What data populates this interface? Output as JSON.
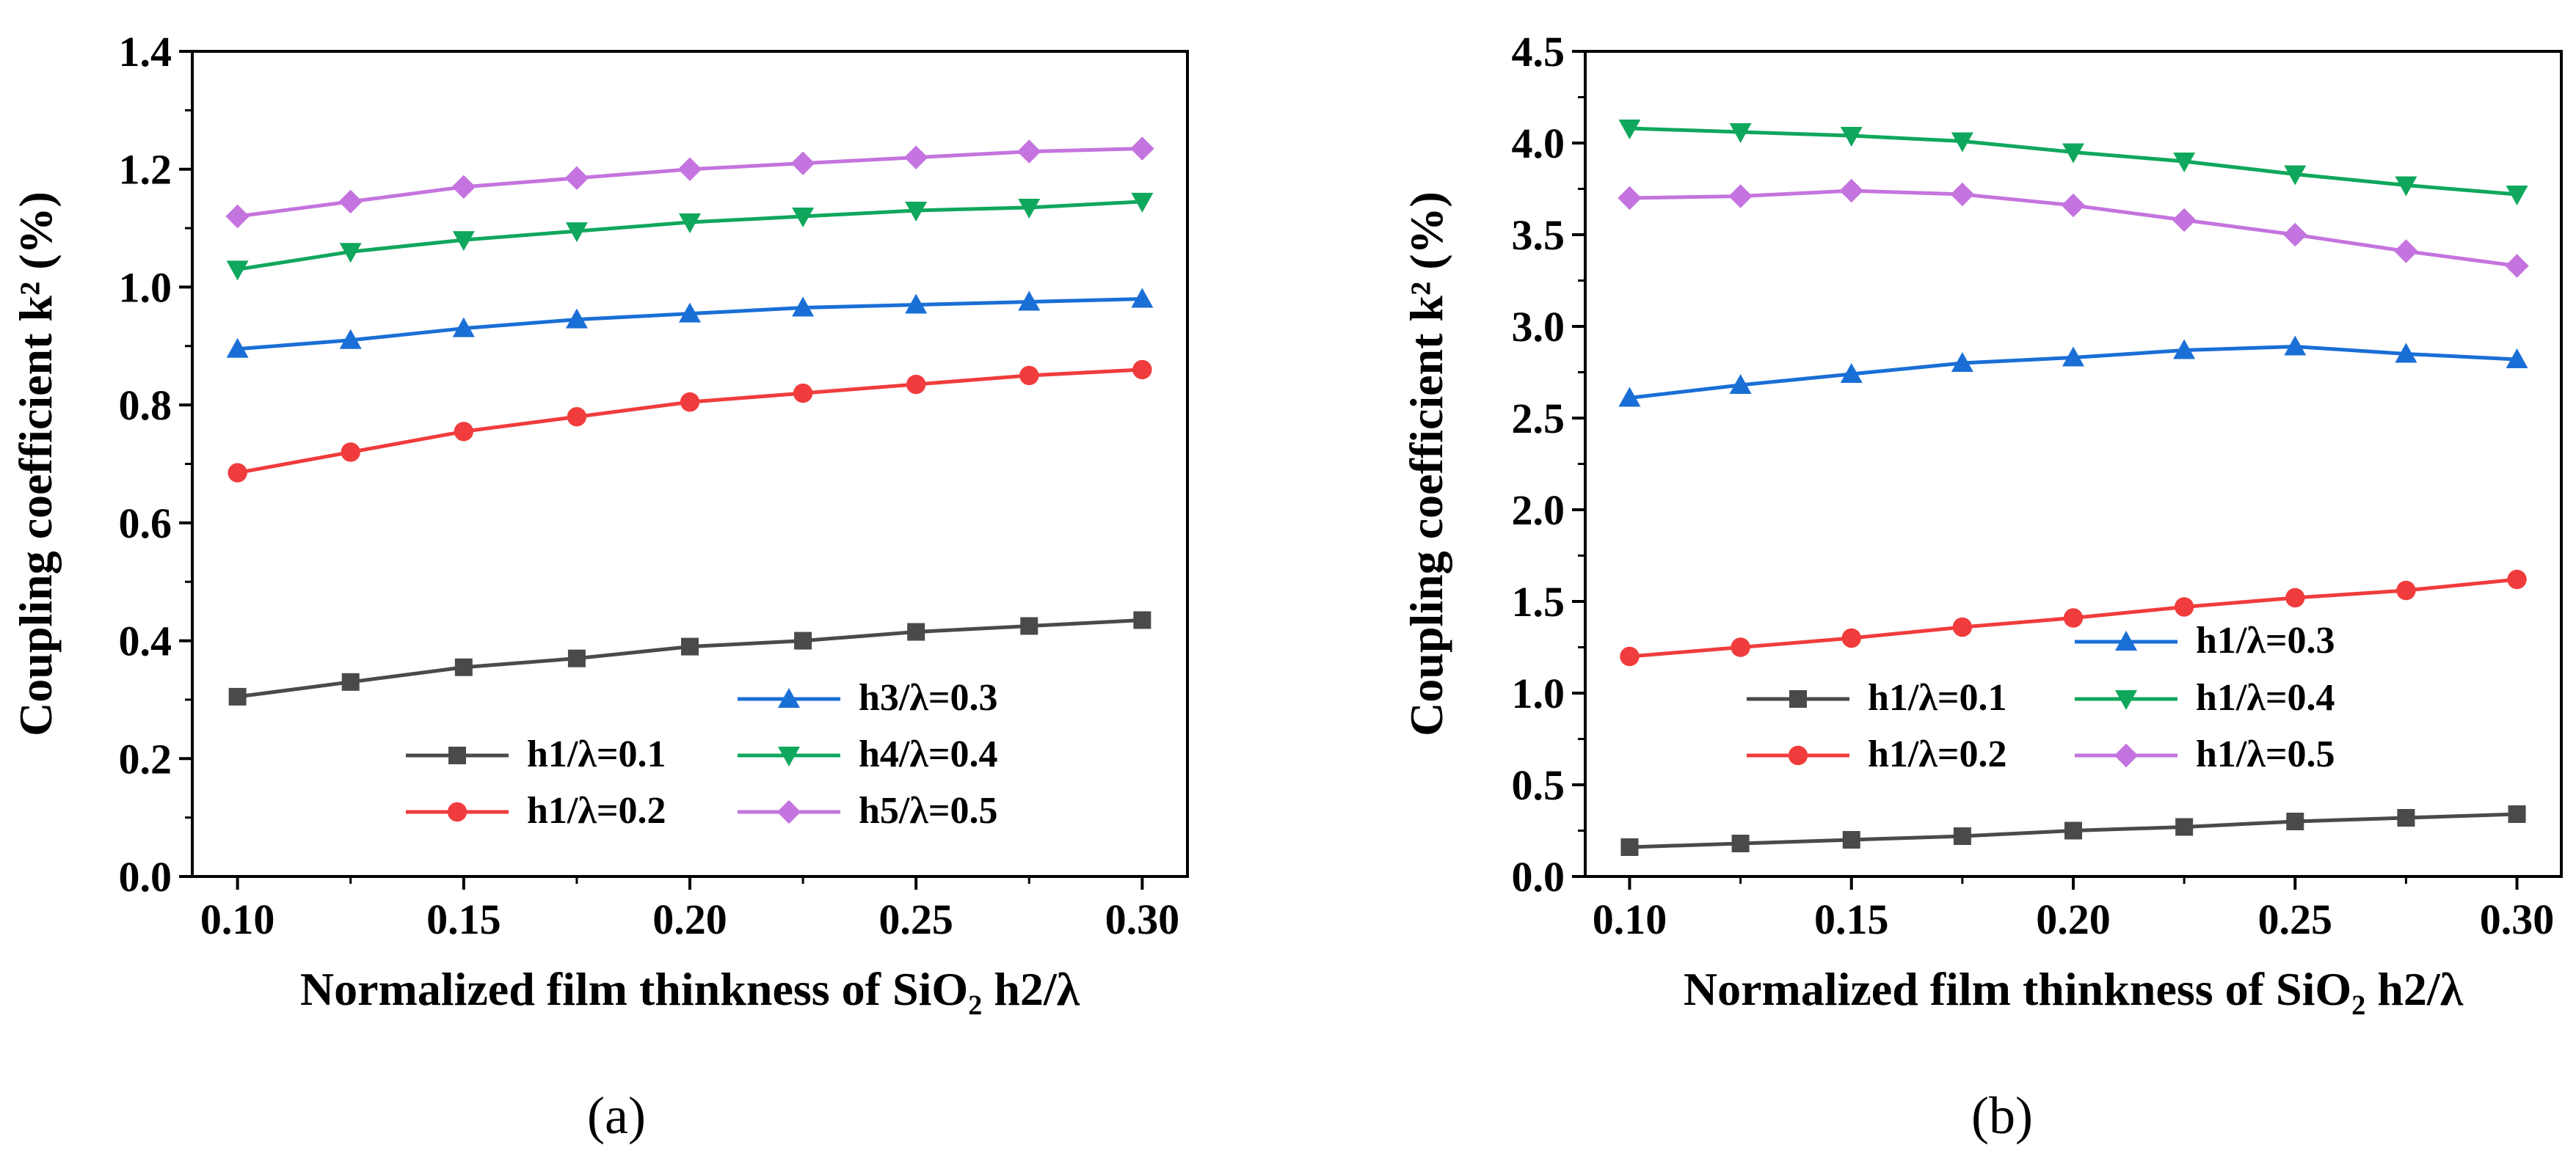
{
  "chart_data": [
    {
      "type": "line",
      "panel_label": "(a)",
      "xlabel": "Normalized film thinkness of SiO₂ h2/λ",
      "ylabel": "Coupling coefficient k² (%)",
      "xlim": [
        0.09,
        0.31
      ],
      "ylim": [
        0.0,
        1.4
      ],
      "xticks": [
        "0.10",
        "0.15",
        "0.20",
        "0.25",
        "0.30"
      ],
      "yticks": [
        "0.0",
        "0.2",
        "0.4",
        "0.6",
        "0.8",
        "1.0",
        "1.2",
        "1.4"
      ],
      "grid": false,
      "legend_position": "bottom-right",
      "x": [
        0.1,
        0.125,
        0.15,
        0.175,
        0.2,
        0.225,
        0.25,
        0.275,
        0.3
      ],
      "series": [
        {
          "name": "h1/λ=0.1",
          "color": "#4a4a4a",
          "marker": "square",
          "values": [
            0.305,
            0.33,
            0.355,
            0.37,
            0.39,
            0.4,
            0.415,
            0.425,
            0.435
          ]
        },
        {
          "name": "h1/λ=0.2",
          "color": "#f03c3c",
          "marker": "circle",
          "values": [
            0.685,
            0.72,
            0.755,
            0.78,
            0.805,
            0.82,
            0.835,
            0.85,
            0.86
          ]
        },
        {
          "name": "h3/λ=0.3",
          "color": "#1a6fd6",
          "marker": "triangle-up",
          "values": [
            0.895,
            0.91,
            0.93,
            0.945,
            0.955,
            0.965,
            0.97,
            0.975,
            0.98
          ]
        },
        {
          "name": "h4/λ=0.4",
          "color": "#0fa75c",
          "marker": "triangle-down",
          "values": [
            1.03,
            1.06,
            1.08,
            1.095,
            1.11,
            1.12,
            1.13,
            1.135,
            1.145
          ]
        },
        {
          "name": "h5/λ=0.5",
          "color": "#c474de",
          "marker": "diamond",
          "values": [
            1.12,
            1.145,
            1.17,
            1.185,
            1.2,
            1.21,
            1.22,
            1.23,
            1.235
          ]
        }
      ]
    },
    {
      "type": "line",
      "panel_label": "(b)",
      "xlabel": "Normalized film thinkness of SiO₂ h2/λ",
      "ylabel": "Coupling coefficient k² (%)",
      "xlim": [
        0.09,
        0.31
      ],
      "ylim": [
        0.0,
        4.5
      ],
      "xticks": [
        "0.10",
        "0.15",
        "0.20",
        "0.25",
        "0.30"
      ],
      "yticks": [
        "0.0",
        "0.5",
        "1.0",
        "1.5",
        "2.0",
        "2.5",
        "3.0",
        "3.5",
        "4.0",
        "4.5"
      ],
      "grid": false,
      "legend_position": "bottom-right",
      "x": [
        0.1,
        0.125,
        0.15,
        0.175,
        0.2,
        0.225,
        0.25,
        0.275,
        0.3
      ],
      "series": [
        {
          "name": "h1/λ=0.1",
          "color": "#4a4a4a",
          "marker": "square",
          "values": [
            0.16,
            0.18,
            0.2,
            0.22,
            0.25,
            0.27,
            0.3,
            0.32,
            0.34
          ]
        },
        {
          "name": "h1/λ=0.2",
          "color": "#f03c3c",
          "marker": "circle",
          "values": [
            1.2,
            1.25,
            1.3,
            1.36,
            1.41,
            1.47,
            1.52,
            1.56,
            1.62
          ]
        },
        {
          "name": "h1/λ=0.3",
          "color": "#1a6fd6",
          "marker": "triangle-up",
          "values": [
            2.61,
            2.68,
            2.74,
            2.8,
            2.83,
            2.87,
            2.89,
            2.85,
            2.82
          ]
        },
        {
          "name": "h1/λ=0.4",
          "color": "#0fa75c",
          "marker": "triangle-down",
          "values": [
            4.08,
            4.06,
            4.04,
            4.01,
            3.95,
            3.9,
            3.83,
            3.77,
            3.72
          ]
        },
        {
          "name": "h1/λ=0.5",
          "color": "#c474de",
          "marker": "diamond",
          "values": [
            3.7,
            3.71,
            3.74,
            3.72,
            3.66,
            3.58,
            3.5,
            3.41,
            3.33
          ]
        }
      ]
    }
  ]
}
